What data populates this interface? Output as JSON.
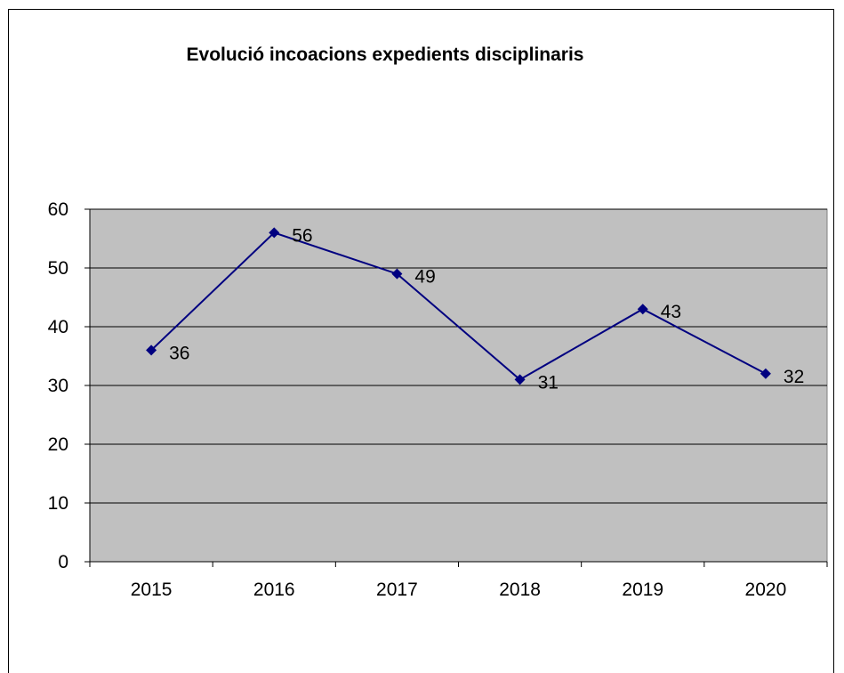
{
  "chart_data": {
    "type": "line",
    "title": "Evolució incoacions expedients disciplinaris",
    "categories": [
      "2015",
      "2016",
      "2017",
      "2018",
      "2019",
      "2020"
    ],
    "series": [
      {
        "values": [
          36,
          56,
          49,
          31,
          43,
          32
        ],
        "data_labels": [
          "36",
          "56",
          "49",
          "31",
          "43",
          "32"
        ],
        "color": "#000080",
        "marker": "diamond"
      }
    ],
    "ylim": [
      0,
      60
    ],
    "yticks": [
      0,
      10,
      20,
      30,
      40,
      50,
      60
    ],
    "ytick_labels": [
      "0",
      "10",
      "20",
      "30",
      "40",
      "50",
      "60"
    ],
    "grid": true,
    "plot_background": "#c0c0c0",
    "legend": "none"
  }
}
